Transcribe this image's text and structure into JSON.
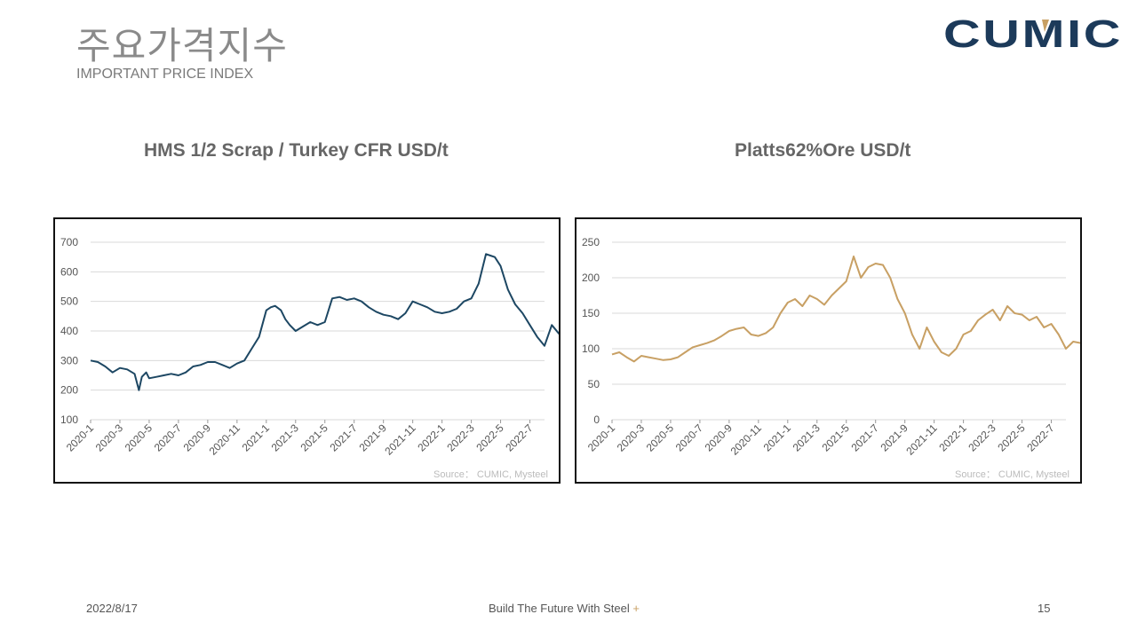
{
  "header": {
    "title_ko": "주요가격지수",
    "title_en": "IMPORTANT PRICE INDEX",
    "logo_text": "CUMIC"
  },
  "colors": {
    "scrap_line": "#1d4763",
    "ore_line": "#c8a064",
    "logo_navy": "#1c3a5a",
    "logo_gold": "#c8a064"
  },
  "chart_data": [
    {
      "type": "line",
      "title": "HMS 1/2 Scrap / Turkey CFR USD/t",
      "source": "Source： CUMIC, Mysteel",
      "ylim": [
        100,
        700
      ],
      "yticks": [
        100,
        200,
        300,
        400,
        500,
        600,
        700
      ],
      "xticks": [
        "2020-1",
        "2020-3",
        "2020-5",
        "2020-7",
        "2020-9",
        "2020-11",
        "2021-1",
        "2021-3",
        "2021-5",
        "2021-7",
        "2021-9",
        "2021-11",
        "2022-1",
        "2022-3",
        "2022-5",
        "2022-7"
      ],
      "grid": true,
      "series": [
        {
          "x": [
            0,
            0.5,
            1,
            1.5,
            2,
            2.5,
            3,
            3.3,
            3.5,
            3.8,
            4,
            4.5,
            5,
            5.5,
            6,
            6.5,
            7,
            7.5,
            8,
            8.5,
            9,
            9.5,
            10,
            10.5,
            11,
            11.5,
            12,
            12.3,
            12.6,
            13,
            13.3,
            13.6,
            14,
            14.5,
            15,
            15.5,
            16,
            16.5,
            17,
            17.5,
            18,
            18.5,
            19,
            19.5,
            20,
            20.5,
            21,
            21.5,
            22,
            22.5,
            23,
            23.5,
            24,
            24.5,
            25,
            25.5,
            26,
            26.5,
            27,
            27.3,
            27.6,
            28,
            28.5,
            29,
            29.5,
            30,
            30.5,
            31,
            31.5,
            32
          ],
          "values": [
            300,
            295,
            280,
            260,
            275,
            270,
            255,
            200,
            245,
            260,
            240,
            245,
            250,
            255,
            250,
            260,
            280,
            285,
            295,
            295,
            285,
            275,
            290,
            300,
            340,
            380,
            470,
            480,
            485,
            470,
            440,
            420,
            400,
            415,
            430,
            420,
            430,
            510,
            515,
            505,
            510,
            500,
            480,
            465,
            455,
            450,
            440,
            460,
            500,
            490,
            480,
            465,
            460,
            465,
            475,
            500,
            510,
            560,
            660,
            655,
            650,
            620,
            540,
            490,
            460,
            420,
            380,
            350,
            420,
            390
          ]
        }
      ]
    },
    {
      "type": "line",
      "title": "Platts62%Ore  USD/t",
      "source": "Source： CUMIC, Mysteel",
      "ylim": [
        0,
        250
      ],
      "yticks": [
        0,
        50,
        100,
        150,
        200,
        250
      ],
      "xticks": [
        "2020-1",
        "2020-3",
        "2020-5",
        "2020-7",
        "2020-9",
        "2020-11",
        "2021-1",
        "2021-3",
        "2021-5",
        "2021-7",
        "2021-9",
        "2021-11",
        "2022-1",
        "2022-3",
        "2022-5",
        "2022-7"
      ],
      "grid": true,
      "series": [
        {
          "x": [
            0,
            0.5,
            1,
            1.5,
            2,
            2.5,
            3,
            3.5,
            4,
            4.5,
            5,
            5.5,
            6,
            6.5,
            7,
            7.5,
            8,
            8.5,
            9,
            9.5,
            10,
            10.5,
            11,
            11.5,
            12,
            12.5,
            13,
            13.5,
            14,
            14.5,
            15,
            15.5,
            16,
            16.5,
            17,
            17.5,
            18,
            18.5,
            19,
            19.5,
            20,
            20.5,
            21,
            21.5,
            22,
            22.5,
            23,
            23.5,
            24,
            24.5,
            25,
            25.5,
            26,
            26.5,
            27,
            27.5,
            28,
            28.5,
            29,
            29.5,
            30,
            30.5,
            31,
            31.5,
            32
          ],
          "values": [
            92,
            95,
            88,
            82,
            90,
            88,
            86,
            84,
            85,
            88,
            95,
            102,
            105,
            108,
            112,
            118,
            125,
            128,
            130,
            120,
            118,
            122,
            130,
            150,
            165,
            170,
            160,
            175,
            170,
            162,
            175,
            185,
            195,
            230,
            200,
            215,
            220,
            218,
            200,
            170,
            150,
            120,
            100,
            130,
            110,
            95,
            90,
            100,
            120,
            125,
            140,
            148,
            155,
            140,
            160,
            150,
            148,
            140,
            145,
            130,
            135,
            120,
            100,
            110,
            108
          ]
        }
      ]
    }
  ],
  "footer": {
    "date": "2022/8/17",
    "slogan": "Build The Future With Steel",
    "plus": "+",
    "page": "15"
  }
}
